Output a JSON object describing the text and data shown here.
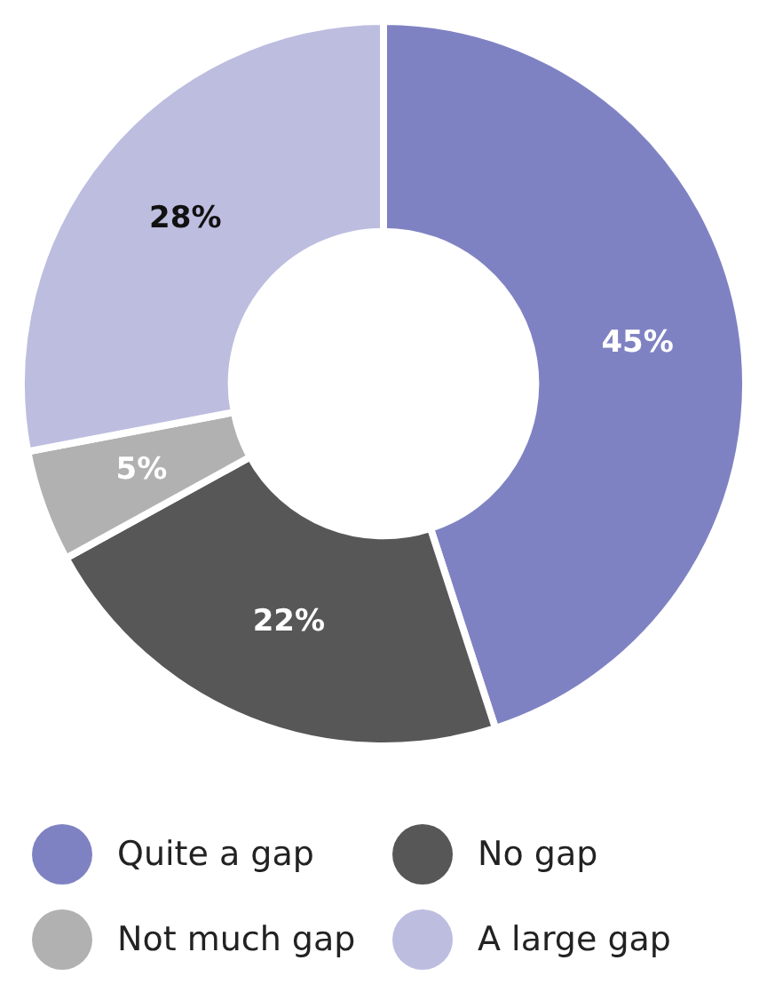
{
  "chart_data": {
    "type": "donut",
    "categories": [
      "Quite a gap",
      "No gap",
      "Not much gap",
      "A large gap"
    ],
    "values": [
      45,
      22,
      5,
      28
    ],
    "colors": [
      "#7f82c2",
      "#575757",
      "#b1b1b1",
      "#bdbde0"
    ],
    "value_labels": [
      "45%",
      "22%",
      "5%",
      "28%"
    ],
    "legend": "bottom"
  }
}
